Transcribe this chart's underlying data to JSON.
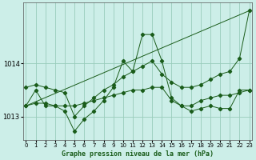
{
  "background_color": "#cceee8",
  "grid_color": "#99ccbb",
  "line_color": "#1a5c1a",
  "title": "Graphe pression niveau de la mer (hPa)",
  "xlim": [
    -0.3,
    23.3
  ],
  "ylim": [
    1012.55,
    1015.15
  ],
  "yticks": [
    1013,
    1014
  ],
  "xticks": [
    0,
    1,
    2,
    3,
    4,
    5,
    6,
    7,
    8,
    9,
    10,
    11,
    12,
    13,
    14,
    15,
    16,
    17,
    18,
    19,
    20,
    21,
    22,
    23
  ],
  "series": [
    {
      "x": [
        0,
        1,
        2,
        3,
        4,
        5,
        6,
        7,
        8,
        9,
        10,
        11,
        12,
        13,
        14,
        15,
        16,
        17,
        18,
        19,
        20,
        21,
        22,
        23
      ],
      "y": [
        1013.2,
        1013.25,
        1013.25,
        1013.2,
        1013.2,
        1013.2,
        1013.25,
        1013.3,
        1013.35,
        1013.4,
        1013.45,
        1013.5,
        1013.5,
        1013.55,
        1013.55,
        1013.3,
        1013.2,
        1013.2,
        1013.3,
        1013.35,
        1013.4,
        1013.4,
        1013.45,
        1013.5
      ]
    },
    {
      "x": [
        0,
        23
      ],
      "y": [
        1013.2,
        1015.0
      ]
    },
    {
      "x": [
        0,
        1,
        2,
        3,
        4,
        5,
        6,
        7,
        8,
        9,
        10,
        11,
        12,
        13,
        14,
        15,
        16,
        17,
        18,
        19,
        20,
        21,
        22,
        23
      ],
      "y": [
        1013.2,
        1013.5,
        1013.2,
        1013.2,
        1013.1,
        1012.72,
        1012.95,
        1013.1,
        1013.3,
        1013.55,
        1014.05,
        1013.85,
        1014.55,
        1014.55,
        1014.05,
        1013.35,
        1013.2,
        1013.1,
        1013.15,
        1013.2,
        1013.15,
        1013.15,
        1013.5,
        1013.5
      ]
    },
    {
      "x": [
        0,
        1,
        2,
        3,
        4,
        5,
        6,
        7,
        8,
        9,
        10,
        11,
        12,
        13,
        14,
        15,
        16,
        17,
        18,
        19,
        20,
        21,
        22,
        23
      ],
      "y": [
        1013.55,
        1013.6,
        1013.55,
        1013.5,
        1013.45,
        1013.0,
        1013.2,
        1013.35,
        1013.5,
        1013.6,
        1013.75,
        1013.85,
        1013.95,
        1014.05,
        1013.8,
        1013.65,
        1013.55,
        1013.55,
        1013.6,
        1013.7,
        1013.8,
        1013.85,
        1014.1,
        1015.0
      ]
    }
  ]
}
